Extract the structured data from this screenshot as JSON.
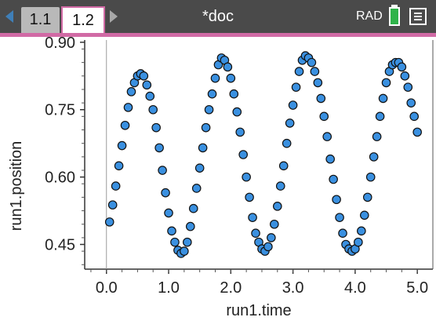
{
  "header": {
    "tabs": [
      {
        "label": "1.1",
        "active": false
      },
      {
        "label": "1.2",
        "active": true
      }
    ],
    "doc_title": "*doc",
    "angle_mode": "RAD",
    "colors": {
      "bar": "#4a4a4a",
      "accent": "#d16aa5",
      "nav_left": "#3f7fb8",
      "battery": "#2fb34a"
    },
    "icons": [
      "nav-left-arrow-icon",
      "nav-right-arrow-icon",
      "battery-icon",
      "menu-icon"
    ]
  },
  "chart_data": {
    "type": "scatter",
    "xlabel": "run1.time",
    "ylabel": "run1.position",
    "xlim": [
      -0.35,
      5.25
    ],
    "ylim": [
      0.395,
      0.905
    ],
    "xticks": [
      "0.0",
      "1.0",
      "2.0",
      "3.0",
      "4.0",
      "5.0"
    ],
    "xtick_values": [
      0,
      1,
      2,
      3,
      4,
      5
    ],
    "yticks": [
      "0.45",
      "0.60",
      "0.75",
      "0.90"
    ],
    "ytick_values": [
      0.45,
      0.6,
      0.75,
      0.9
    ],
    "marker_color": "#3a90e0",
    "grid": false,
    "series": [
      {
        "x": [
          0.05,
          0.1,
          0.15,
          0.2,
          0.25,
          0.3,
          0.35,
          0.4,
          0.45,
          0.5,
          0.55,
          0.6,
          0.65,
          0.7,
          0.75,
          0.8,
          0.85,
          0.9,
          0.95,
          1.0,
          1.05,
          1.1,
          1.15,
          1.2,
          1.25,
          1.3,
          1.35,
          1.4,
          1.45,
          1.5,
          1.55,
          1.6,
          1.65,
          1.7,
          1.75,
          1.8,
          1.85,
          1.9,
          1.95,
          2.0,
          2.05,
          2.1,
          2.15,
          2.2,
          2.25,
          2.3,
          2.35,
          2.4,
          2.45,
          2.5,
          2.55,
          2.6,
          2.65,
          2.7,
          2.75,
          2.8,
          2.85,
          2.9,
          2.95,
          3.0,
          3.05,
          3.1,
          3.15,
          3.2,
          3.25,
          3.3,
          3.35,
          3.4,
          3.45,
          3.5,
          3.55,
          3.6,
          3.65,
          3.7,
          3.75,
          3.8,
          3.85,
          3.9,
          3.95,
          4.0,
          4.05,
          4.1,
          4.15,
          4.2,
          4.25,
          4.3,
          4.35,
          4.4,
          4.45,
          4.5,
          4.55,
          4.6,
          4.65,
          4.7,
          4.75,
          4.8,
          4.85,
          4.9,
          4.95,
          5.0
        ],
        "y": [
          0.5,
          0.538,
          0.58,
          0.625,
          0.67,
          0.715,
          0.755,
          0.79,
          0.81,
          0.825,
          0.83,
          0.825,
          0.805,
          0.78,
          0.75,
          0.71,
          0.665,
          0.615,
          0.565,
          0.52,
          0.48,
          0.455,
          0.437,
          0.43,
          0.435,
          0.455,
          0.49,
          0.53,
          0.575,
          0.62,
          0.665,
          0.71,
          0.75,
          0.785,
          0.82,
          0.85,
          0.865,
          0.86,
          0.845,
          0.82,
          0.785,
          0.745,
          0.7,
          0.65,
          0.6,
          0.555,
          0.51,
          0.475,
          0.455,
          0.44,
          0.435,
          0.445,
          0.465,
          0.495,
          0.535,
          0.58,
          0.625,
          0.675,
          0.72,
          0.76,
          0.8,
          0.835,
          0.86,
          0.87,
          0.865,
          0.855,
          0.835,
          0.81,
          0.775,
          0.735,
          0.69,
          0.64,
          0.595,
          0.55,
          0.51,
          0.475,
          0.45,
          0.44,
          0.435,
          0.44,
          0.455,
          0.48,
          0.515,
          0.555,
          0.6,
          0.645,
          0.69,
          0.735,
          0.775,
          0.81,
          0.835,
          0.85,
          0.855,
          0.855,
          0.845,
          0.825,
          0.8,
          0.765,
          0.735,
          0.7
        ]
      }
    ]
  }
}
